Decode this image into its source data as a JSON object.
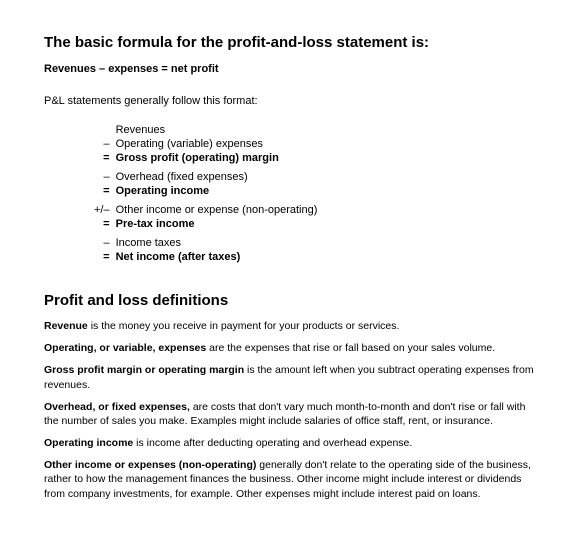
{
  "heading1": "The basic formula for the profit-and-loss statement is:",
  "formula": "Revenues – expenses = net profit",
  "intro": "P&L statements generally follow this format:",
  "rows": [
    {
      "sym": "",
      "label": "Revenues",
      "bold": false,
      "gap": false
    },
    {
      "sym": "–",
      "label": "Operating (variable) expenses",
      "bold": false,
      "gap": false
    },
    {
      "sym": "=",
      "label": "Gross profit (operating) margin",
      "bold": true,
      "gap": false
    },
    {
      "sym": "–",
      "label": "Overhead (fixed expenses)",
      "bold": false,
      "gap": true
    },
    {
      "sym": "=",
      "label": "Operating income",
      "bold": true,
      "gap": false
    },
    {
      "sym": "+/–",
      "label": "Other income or expense (non-operating)",
      "bold": false,
      "gap": true
    },
    {
      "sym": "=",
      "label": "Pre-tax income",
      "bold": true,
      "gap": false
    },
    {
      "sym": "–",
      "label": "Income taxes",
      "bold": false,
      "gap": true
    },
    {
      "sym": "=",
      "label": "Net income (after taxes)",
      "bold": true,
      "gap": false
    }
  ],
  "heading2": "Profit and loss definitions",
  "defs": [
    {
      "term": "Revenue",
      "rest": " is the money you receive in payment for your products or services."
    },
    {
      "term": "Operating, or variable, expenses",
      "rest": " are the expenses that rise or fall based on your sales volume."
    },
    {
      "term": "Gross profit margin or operating margin",
      "rest": " is the amount left when you subtract operating expenses from revenues."
    },
    {
      "term": "Overhead, or fixed expenses,",
      "rest": " are costs that don't vary much month-to-month and don't rise or fall with the number of sales you make. Examples might include salaries of office staff, rent, or insurance."
    },
    {
      "term": "Operating income",
      "rest": " is income after deducting operating and overhead expense."
    },
    {
      "term": "Other income or expenses (non-operating)",
      "rest": " generally don't relate to the operating side of the business, rather to how the management finances the business. Other income might include interest or dividends from company investments, for example.  Other expenses might include interest paid on loans."
    }
  ]
}
